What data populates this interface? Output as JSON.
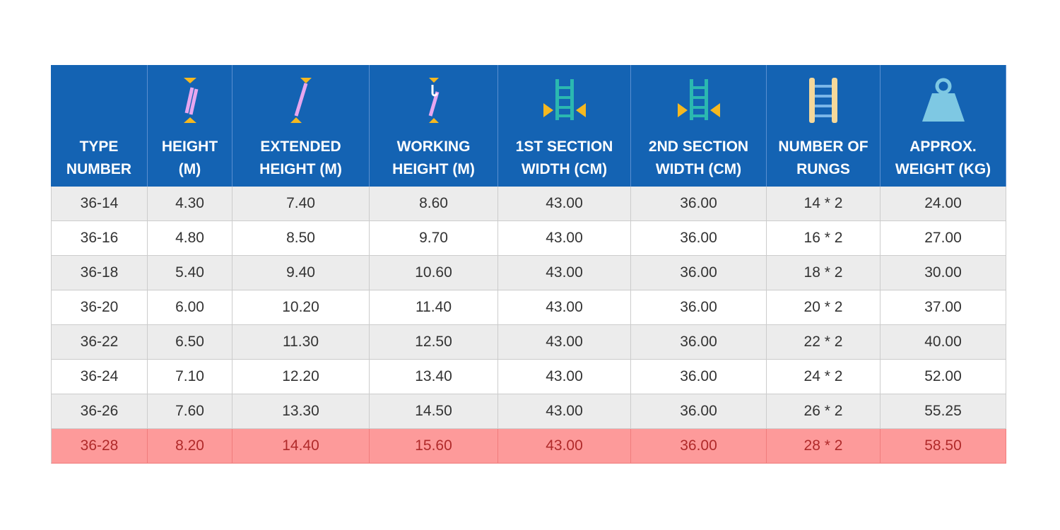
{
  "table": {
    "header": [
      [
        "TYPE",
        "NUMBER"
      ],
      [
        "HEIGHT",
        "(M)"
      ],
      [
        "EXTENDED",
        "HEIGHT (M)"
      ],
      [
        "WORKING",
        "HEIGHT (M)"
      ],
      [
        "1ST SECTION",
        "WIDTH (CM)"
      ],
      [
        "2ND SECTION",
        "WIDTH (CM)"
      ],
      [
        "NUMBER OF",
        "RUNGS"
      ],
      [
        "APPROX.",
        "WEIGHT (KG)"
      ]
    ],
    "rows": [
      [
        "36-14",
        "4.30",
        "7.40",
        "8.60",
        "43.00",
        "36.00",
        "14 * 2",
        "24.00"
      ],
      [
        "36-16",
        "4.80",
        "8.50",
        "9.70",
        "43.00",
        "36.00",
        "16 * 2",
        "27.00"
      ],
      [
        "36-18",
        "5.40",
        "9.40",
        "10.60",
        "43.00",
        "36.00",
        "18 * 2",
        "30.00"
      ],
      [
        "36-20",
        "6.00",
        "10.20",
        "11.40",
        "43.00",
        "36.00",
        "20 * 2",
        "37.00"
      ],
      [
        "36-22",
        "6.50",
        "11.30",
        "12.50",
        "43.00",
        "36.00",
        "22 * 2",
        "40.00"
      ],
      [
        "36-24",
        "7.10",
        "12.20",
        "13.40",
        "43.00",
        "36.00",
        "24 * 2",
        "52.00"
      ],
      [
        "36-26",
        "7.60",
        "13.30",
        "14.50",
        "43.00",
        "36.00",
        "26 * 2",
        "55.25"
      ],
      [
        "36-28",
        "8.20",
        "14.40",
        "15.60",
        "43.00",
        "36.00",
        "28 * 2",
        "58.50"
      ]
    ]
  }
}
